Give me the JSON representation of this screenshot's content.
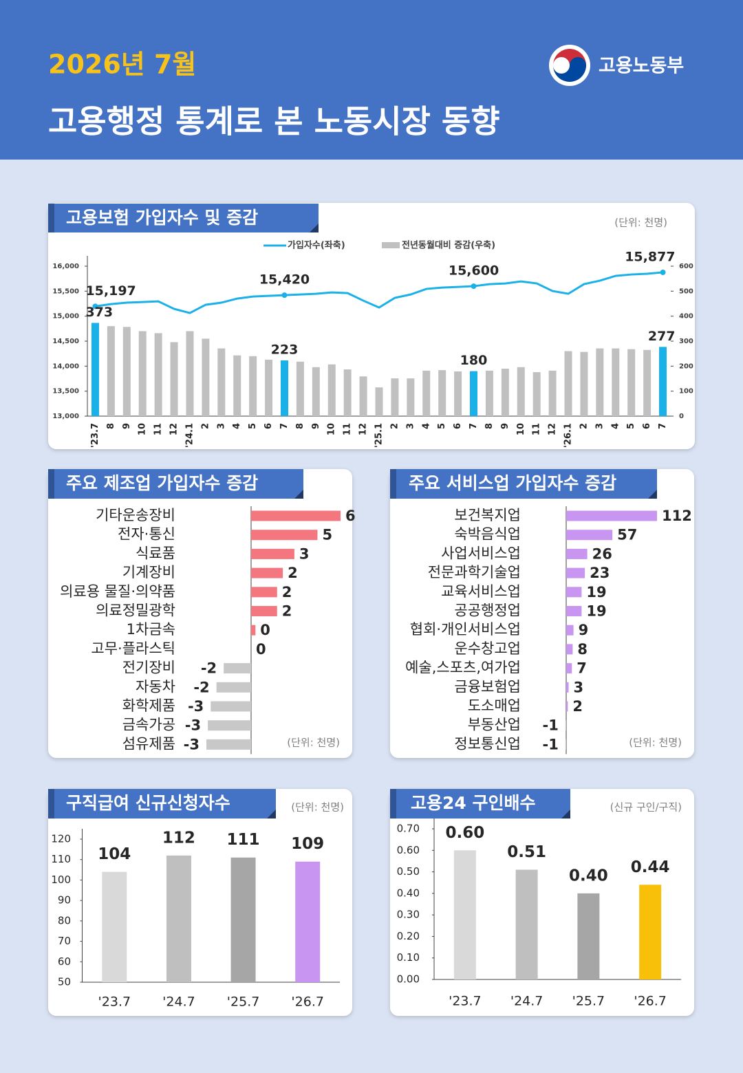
{
  "header": {
    "date": "2026년 7월",
    "title": "고용행정 통계로 본 노동시장 동향",
    "ministry": "고용노동부"
  },
  "chart_data": [
    {
      "type": "combo",
      "title": "고용보험 가입자수 및 증감",
      "unit": "(단위: 천명)",
      "categories": [
        "'23.7",
        "8",
        "9",
        "10",
        "11",
        "12",
        "'24.1",
        "2",
        "3",
        "4",
        "5",
        "6",
        "7",
        "8",
        "9",
        "10",
        "11",
        "12",
        "'25.1",
        "2",
        "3",
        "4",
        "5",
        "6",
        "7",
        "8",
        "9",
        "10",
        "11",
        "12",
        "'26.1",
        "2",
        "3",
        "4",
        "5",
        "6",
        "7"
      ],
      "series": [
        {
          "name": "가입자수(좌축)",
          "type": "line",
          "color": "#1ab0e8",
          "values": [
            15197,
            15242,
            15270,
            15283,
            15297,
            15146,
            15063,
            15228,
            15270,
            15352,
            15393,
            15407,
            15420,
            15434,
            15448,
            15476,
            15462,
            15311,
            15173,
            15366,
            15434,
            15545,
            15572,
            15586,
            15600,
            15641,
            15655,
            15696,
            15655,
            15503,
            15448,
            15641,
            15710,
            15806,
            15834,
            15848,
            15877
          ],
          "value_labels": [
            "15,197",
            null,
            null,
            null,
            null,
            null,
            null,
            null,
            null,
            null,
            null,
            null,
            "15,420",
            null,
            null,
            null,
            null,
            null,
            null,
            null,
            null,
            null,
            null,
            null,
            "15,600",
            null,
            null,
            null,
            null,
            null,
            null,
            null,
            null,
            null,
            null,
            null,
            "15,877"
          ]
        },
        {
          "name": "전년동월대비 증감(우축)",
          "type": "bar",
          "axis": "y2",
          "color": "#c0c0c0",
          "highlight_color": "#1ab0e8",
          "values": [
            373,
            360,
            357,
            340,
            332,
            296,
            340,
            310,
            271,
            243,
            240,
            226,
            223,
            218,
            196,
            207,
            187,
            159,
            115,
            151,
            151,
            182,
            184,
            179,
            180,
            182,
            190,
            196,
            176,
            182,
            260,
            257,
            271,
            271,
            268,
            265,
            277
          ],
          "value_labels": [
            "373",
            null,
            null,
            null,
            null,
            null,
            null,
            null,
            null,
            null,
            null,
            null,
            "223",
            null,
            null,
            null,
            null,
            null,
            null,
            null,
            null,
            null,
            null,
            null,
            "180",
            null,
            null,
            null,
            null,
            null,
            null,
            null,
            null,
            null,
            null,
            null,
            "277"
          ]
        }
      ],
      "ylim": [
        13000,
        16000
      ],
      "yticks": [
        {
          "value": 13000,
          "label": "13,000"
        },
        {
          "value": 13500,
          "label": "13,500"
        },
        {
          "value": 14000,
          "label": "14,000"
        },
        {
          "value": 14500,
          "label": "14,500"
        },
        {
          "value": 15000,
          "label": "15,000"
        },
        {
          "value": 15500,
          "label": "15,500"
        },
        {
          "value": 16000,
          "label": "16,000"
        }
      ],
      "y2lim": [
        0,
        600
      ],
      "y2ticks": [
        0,
        100,
        200,
        300,
        400,
        500,
        600
      ]
    },
    {
      "type": "hbar",
      "title": "주요 제조업 가입자수 증감",
      "unit": "(단위: 천명)",
      "color": "#f4777f",
      "negative_color": "#c8c8c8",
      "categories": [
        "기타운송장비",
        "전자·통신",
        "식료품",
        "기계장비",
        "의료용 물질·의약품",
        "의료정밀광학",
        "1차금속",
        "고무·플라스틱",
        "전기장비",
        "자동차",
        "화학제품",
        "금속가공",
        "섬유제품"
      ],
      "values": [
        6.2,
        4.6,
        3.0,
        2.2,
        1.8,
        1.8,
        0.3,
        0.0,
        -1.9,
        -2.4,
        -2.8,
        -3.0,
        -3.1
      ],
      "value_labels": [
        "6",
        "5",
        "3",
        "2",
        "2",
        "2",
        "0",
        "0",
        "-2",
        "-2",
        "-3",
        "-3",
        "-3"
      ]
    },
    {
      "type": "hbar",
      "title": "주요 서비스업 가입자수 증감",
      "unit": "(단위: 천명)",
      "color": "#c896f0",
      "negative_color": "#c8c8c8",
      "categories": [
        "보건복지업",
        "숙박음식업",
        "사업서비스업",
        "전문과학기술업",
        "교육서비스업",
        "공공행정업",
        "협회·개인서비스업",
        "운수창고업",
        "예술,스포츠,여가업",
        "금융보험업",
        "도소매업",
        "부동산업",
        "정보통신업"
      ],
      "values": [
        112,
        57,
        26,
        23,
        19,
        19,
        9,
        8,
        7,
        3,
        2,
        -1,
        -1
      ]
    },
    {
      "type": "bar",
      "title": "구직급여 신규신청자수",
      "unit": "(단위: 천명)",
      "categories": [
        "'23.7",
        "'24.7",
        "'25.7",
        "'26.7"
      ],
      "values": [
        104,
        112,
        111,
        109
      ],
      "colors": [
        "#d9d9d9",
        "#bfbfbf",
        "#a6a6a6",
        "#c896f0"
      ],
      "ylim": [
        50,
        120
      ],
      "yticks": [
        50,
        60,
        70,
        80,
        90,
        100,
        110,
        120
      ]
    },
    {
      "type": "bar",
      "title": "고용24 구인배수",
      "unit": "(신규 구인/구직)",
      "categories": [
        "'23.7",
        "'24.7",
        "'25.7",
        "'26.7"
      ],
      "values": [
        0.6,
        0.51,
        0.4,
        0.44
      ],
      "value_labels": [
        "0.60",
        "0.51",
        "0.40",
        "0.44"
      ],
      "colors": [
        "#d9d9d9",
        "#bfbfbf",
        "#a6a6a6",
        "#f9c00a"
      ],
      "ylim": [
        0,
        0.7
      ],
      "yticks": [
        {
          "value": 0,
          "label": "0.00"
        },
        {
          "value": 0.1,
          "label": "0.10"
        },
        {
          "value": 0.2,
          "label": "0.20"
        },
        {
          "value": 0.3,
          "label": "0.30"
        },
        {
          "value": 0.4,
          "label": "0.40"
        },
        {
          "value": 0.5,
          "label": "0.50"
        },
        {
          "value": 0.6,
          "label": "0.60"
        },
        {
          "value": 0.7,
          "label": "0.70"
        }
      ]
    }
  ]
}
